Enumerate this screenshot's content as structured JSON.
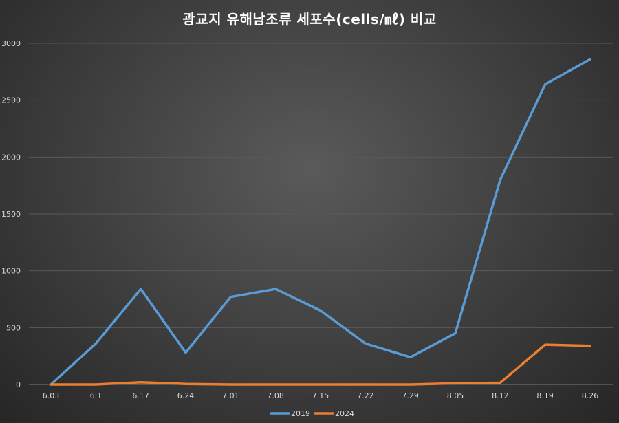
{
  "chart_data": {
    "type": "line",
    "title": "광교지 유해남조류 세포수(cells/㎖) 비교",
    "categories": [
      "6.03",
      "6.1",
      "6.17",
      "6.24",
      "7.01",
      "7.08",
      "7.15",
      "7.22",
      "7.29",
      "8.05",
      "8.12",
      "8.19",
      "8.26"
    ],
    "series": [
      {
        "name": "2019",
        "color": "#5b9bd5",
        "values": [
          0,
          360,
          840,
          280,
          770,
          840,
          650,
          360,
          240,
          450,
          1800,
          2640,
          2860
        ]
      },
      {
        "name": "2024",
        "color": "#ed7d31",
        "values": [
          0,
          0,
          20,
          5,
          0,
          0,
          0,
          0,
          0,
          10,
          15,
          350,
          340
        ]
      }
    ],
    "ylim": [
      0,
      3000
    ],
    "yticks": [
      0,
      500,
      1000,
      1500,
      2000,
      2500,
      3000
    ],
    "grid": true,
    "legend": "bottom"
  }
}
